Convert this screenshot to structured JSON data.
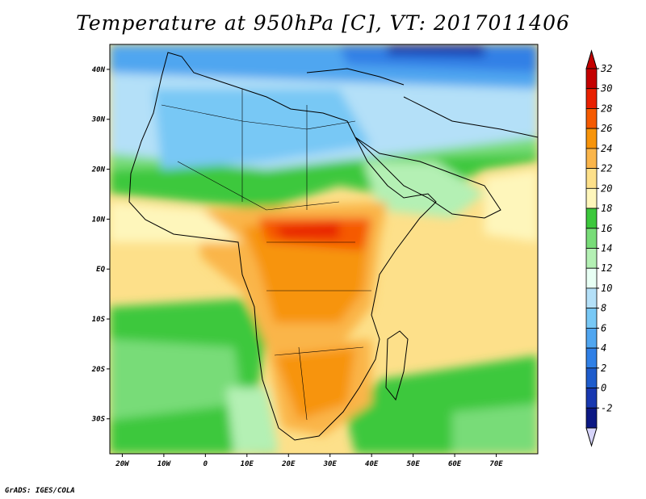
{
  "title": "Temperature at 950hPa [C], VT: 2017011406",
  "credit": "GrADS: IGES/COLA",
  "map": {
    "type": "filled-contour",
    "lon_range": [
      -23,
      80
    ],
    "lat_range": [
      -37,
      45
    ],
    "lon_ticks": [
      {
        "value": -20,
        "label": "20W"
      },
      {
        "value": -10,
        "label": "10W"
      },
      {
        "value": 0,
        "label": "0"
      },
      {
        "value": 10,
        "label": "10E"
      },
      {
        "value": 20,
        "label": "20E"
      },
      {
        "value": 30,
        "label": "30E"
      },
      {
        "value": 40,
        "label": "40E"
      },
      {
        "value": 50,
        "label": "50E"
      },
      {
        "value": 60,
        "label": "60E"
      },
      {
        "value": 70,
        "label": "70E"
      }
    ],
    "lat_ticks": [
      {
        "value": 40,
        "label": "40N"
      },
      {
        "value": 30,
        "label": "30N"
      },
      {
        "value": 20,
        "label": "20N"
      },
      {
        "value": 10,
        "label": "10N"
      },
      {
        "value": 0,
        "label": "EQ"
      },
      {
        "value": -10,
        "label": "10S"
      },
      {
        "value": -20,
        "label": "20S"
      },
      {
        "value": -30,
        "label": "30S"
      }
    ]
  },
  "colorbar": {
    "labels": [
      "32",
      "30",
      "28",
      "26",
      "24",
      "22",
      "20",
      "18",
      "16",
      "14",
      "12",
      "10",
      "8",
      "6",
      "4",
      "2",
      "0",
      "-2"
    ],
    "colors_top_down": [
      "#c40000",
      "#e82000",
      "#f55a00",
      "#f7940a",
      "#fab54a",
      "#fde08a",
      "#fef6bb",
      "#3cc83c",
      "#78dc78",
      "#b4f0b4",
      "#e8fff4",
      "#b4e0f8",
      "#78c8f5",
      "#50a6f0",
      "#3080e6",
      "#1e5ccc",
      "#1838b0",
      "#0c1884"
    ],
    "over_color": "#c40000",
    "under_color": "#d6d4fa"
  }
}
